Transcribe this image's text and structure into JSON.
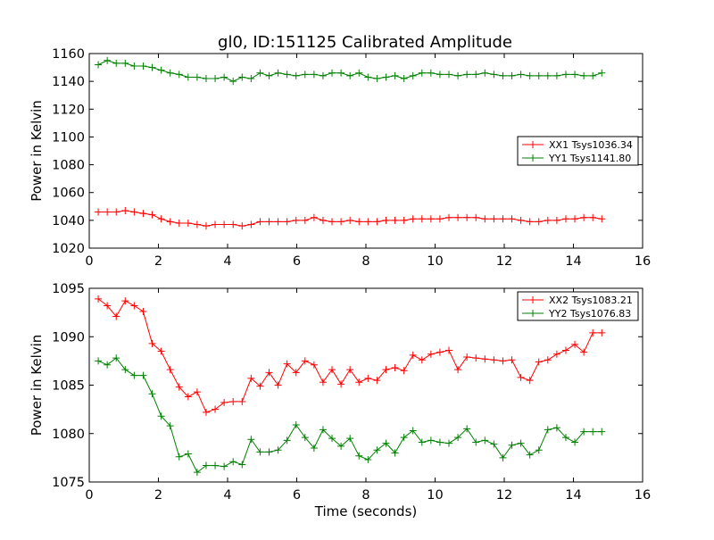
{
  "title": "gl0, ID:151125 Calibrated Amplitude",
  "chart_data": [
    {
      "type": "line",
      "title": "gl0, ID:151125 Calibrated Amplitude",
      "xlabel": "",
      "ylabel": "Power in Kelvin",
      "xlim": [
        0,
        16
      ],
      "ylim": [
        1020,
        1160
      ],
      "xticks": [
        0,
        2,
        4,
        6,
        8,
        10,
        12,
        14,
        16
      ],
      "yticks": [
        1020,
        1040,
        1060,
        1080,
        1100,
        1120,
        1140,
        1160
      ],
      "legend_position": "center-right",
      "x": [
        0.26,
        0.52,
        0.78,
        1.04,
        1.3,
        1.56,
        1.82,
        2.08,
        2.34,
        2.6,
        2.86,
        3.12,
        3.38,
        3.64,
        3.9,
        4.16,
        4.42,
        4.68,
        4.94,
        5.2,
        5.46,
        5.72,
        5.98,
        6.24,
        6.5,
        6.76,
        7.02,
        7.28,
        7.54,
        7.8,
        8.06,
        8.32,
        8.58,
        8.84,
        9.1,
        9.36,
        9.62,
        9.88,
        10.14,
        10.4,
        10.66,
        10.92,
        11.18,
        11.44,
        11.7,
        11.96,
        12.22,
        12.48,
        12.74,
        13.0,
        13.26,
        13.52,
        13.78,
        14.04,
        14.3,
        14.56,
        14.82
      ],
      "series": [
        {
          "name": "XX1 Tsys1036.34",
          "color": "#ff0000",
          "values": [
            1046,
            1046,
            1046,
            1047,
            1046,
            1045,
            1044,
            1041,
            1039,
            1038,
            1038,
            1037,
            1036,
            1037,
            1037,
            1037,
            1036,
            1037,
            1039,
            1039,
            1039,
            1039,
            1040,
            1040,
            1042,
            1040,
            1039,
            1039,
            1040,
            1039,
            1039,
            1039,
            1040,
            1040,
            1040,
            1041,
            1041,
            1041,
            1041,
            1042,
            1042,
            1042,
            1042,
            1041,
            1041,
            1041,
            1041,
            1040,
            1039,
            1039,
            1040,
            1040,
            1041,
            1041,
            1042,
            1042,
            1041
          ]
        },
        {
          "name": "YY1 Tsys1141.80",
          "color": "#008000",
          "values": [
            1152,
            1155,
            1153,
            1153,
            1151,
            1151,
            1150,
            1148,
            1146,
            1145,
            1143,
            1143,
            1142,
            1142,
            1143,
            1140,
            1143,
            1142,
            1146,
            1144,
            1146,
            1145,
            1144,
            1145,
            1145,
            1144,
            1146,
            1146,
            1144,
            1146,
            1143,
            1142,
            1143,
            1144,
            1142,
            1144,
            1146,
            1146,
            1145,
            1145,
            1144,
            1145,
            1145,
            1146,
            1145,
            1144,
            1144,
            1145,
            1144,
            1144,
            1144,
            1144,
            1145,
            1145,
            1144,
            1144,
            1146
          ]
        }
      ]
    },
    {
      "type": "line",
      "xlabel": "Time (seconds)",
      "ylabel": "Power in Kelvin",
      "xlim": [
        0,
        16
      ],
      "ylim": [
        1075,
        1095
      ],
      "xticks": [
        0,
        2,
        4,
        6,
        8,
        10,
        12,
        14,
        16
      ],
      "yticks": [
        1075,
        1080,
        1085,
        1090,
        1095
      ],
      "legend_position": "top-right",
      "x": [
        0.26,
        0.52,
        0.78,
        1.04,
        1.3,
        1.56,
        1.82,
        2.08,
        2.34,
        2.6,
        2.86,
        3.12,
        3.38,
        3.64,
        3.9,
        4.16,
        4.42,
        4.68,
        4.94,
        5.2,
        5.46,
        5.72,
        5.98,
        6.24,
        6.5,
        6.76,
        7.02,
        7.28,
        7.54,
        7.8,
        8.06,
        8.32,
        8.58,
        8.84,
        9.1,
        9.36,
        9.62,
        9.88,
        10.14,
        10.4,
        10.66,
        10.92,
        11.18,
        11.44,
        11.7,
        11.96,
        12.22,
        12.48,
        12.74,
        13.0,
        13.26,
        13.52,
        13.78,
        14.04,
        14.3,
        14.56,
        14.82
      ],
      "series": [
        {
          "name": "XX2 Tsys1083.21",
          "color": "#ff0000",
          "values": [
            1093.9,
            1093.2,
            1092.1,
            1093.7,
            1093.2,
            1092.6,
            1089.3,
            1088.5,
            1086.6,
            1084.8,
            1083.8,
            1084.3,
            1082.2,
            1082.5,
            1083.2,
            1083.3,
            1083.3,
            1085.7,
            1084.9,
            1086.3,
            1085.0,
            1087.2,
            1086.3,
            1087.5,
            1087.1,
            1085.3,
            1086.6,
            1085.1,
            1086.6,
            1085.3,
            1085.7,
            1085.5,
            1086.6,
            1086.8,
            1086.5,
            1088.1,
            1087.6,
            1088.2,
            1088.4,
            1088.6,
            1086.6,
            1087.9,
            1087.8,
            1087.7,
            1087.6,
            1087.5,
            1087.6,
            1085.8,
            1085.5,
            1087.4,
            1087.6,
            1088.2,
            1088.6,
            1089.2,
            1088.4,
            1090.4,
            1090.4
          ]
        },
        {
          "name": "YY2 Tsys1076.83",
          "color": "#008000",
          "values": [
            1087.5,
            1087.1,
            1087.8,
            1086.6,
            1086.0,
            1086.0,
            1084.1,
            1081.8,
            1080.8,
            1077.6,
            1077.9,
            1076.0,
            1076.7,
            1076.7,
            1076.6,
            1077.1,
            1076.8,
            1079.4,
            1078.1,
            1078.1,
            1078.3,
            1079.3,
            1080.9,
            1079.6,
            1078.5,
            1080.4,
            1079.5,
            1078.7,
            1079.5,
            1077.7,
            1077.3,
            1078.3,
            1079.0,
            1078.0,
            1079.6,
            1080.3,
            1079.1,
            1079.3,
            1079.1,
            1079.0,
            1079.6,
            1080.5,
            1079.1,
            1079.3,
            1078.9,
            1077.5,
            1078.8,
            1079.0,
            1077.8,
            1078.3,
            1080.4,
            1080.6,
            1079.6,
            1079.1,
            1080.2,
            1080.2,
            1080.2
          ]
        }
      ]
    }
  ]
}
